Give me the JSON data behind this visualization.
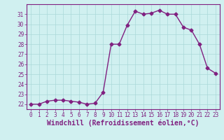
{
  "x": [
    0,
    1,
    2,
    3,
    4,
    5,
    6,
    7,
    8,
    9,
    10,
    11,
    12,
    13,
    14,
    15,
    16,
    17,
    18,
    19,
    20,
    21,
    22,
    23
  ],
  "y": [
    22.0,
    22.0,
    22.3,
    22.4,
    22.4,
    22.3,
    22.2,
    22.0,
    22.1,
    23.2,
    28.0,
    28.0,
    29.9,
    31.3,
    31.0,
    31.1,
    31.4,
    31.0,
    31.0,
    29.7,
    29.4,
    28.0,
    25.6,
    25.1
  ],
  "line_color": "#802080",
  "marker": "D",
  "markersize": 2.5,
  "bg_color": "#d0f0f0",
  "grid_color": "#aad8d8",
  "xlabel": "Windchill (Refroidissement éolien,°C)",
  "ylim": [
    21.5,
    32.0
  ],
  "xlim": [
    -0.5,
    23.5
  ],
  "yticks": [
    22,
    23,
    24,
    25,
    26,
    27,
    28,
    29,
    30,
    31
  ],
  "xticks": [
    0,
    1,
    2,
    3,
    4,
    5,
    6,
    7,
    8,
    9,
    10,
    11,
    12,
    13,
    14,
    15,
    16,
    17,
    18,
    19,
    20,
    21,
    22,
    23
  ],
  "tick_fontsize": 5.5,
  "xlabel_fontsize": 7.0,
  "line_width": 1.0
}
